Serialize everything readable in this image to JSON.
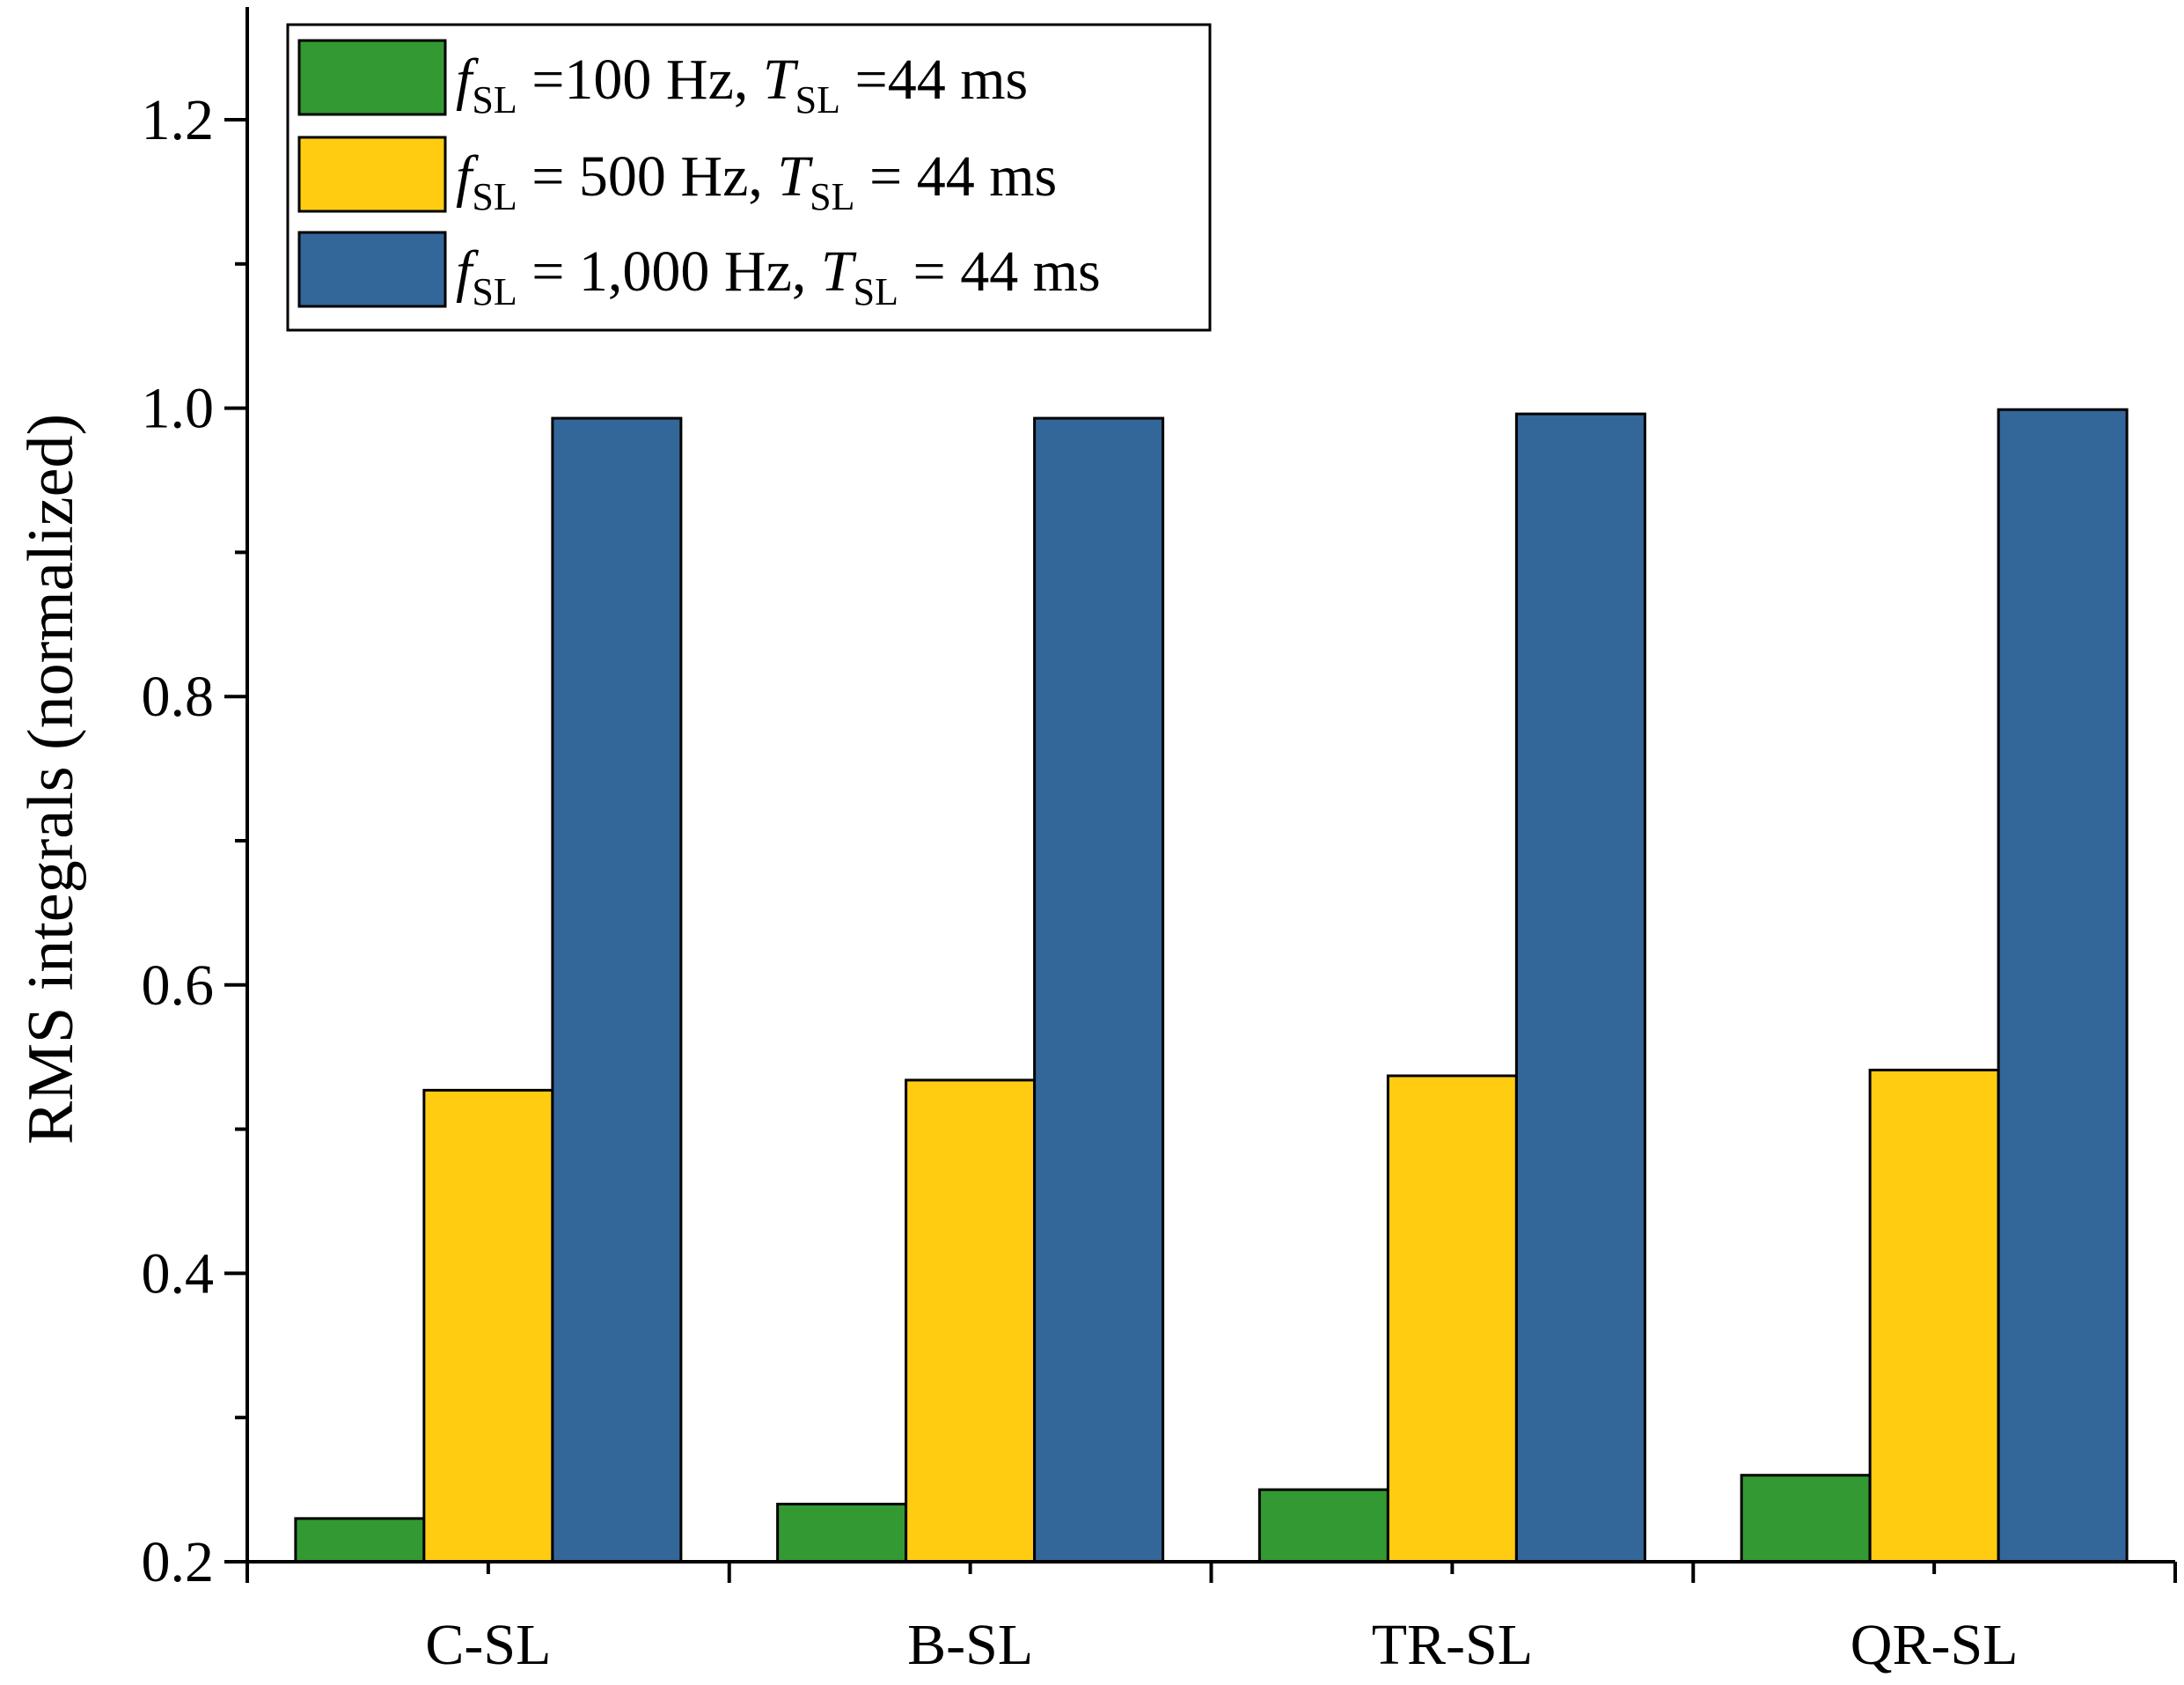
{
  "chart_data": {
    "type": "bar",
    "title": "",
    "xlabel": "",
    "ylabel": "RMS integrals (normalized)",
    "ylim": [
      0.2,
      1.28
    ],
    "yticks": [
      0.2,
      0.4,
      0.6,
      0.8,
      1.0,
      1.2
    ],
    "ytick_labels": [
      "0.2",
      "0.4",
      "0.6",
      "0.8",
      "1.0",
      "1.2"
    ],
    "categories": [
      "C-SL",
      "B-SL",
      "TR-SL",
      "QR-SL"
    ],
    "grid": false,
    "legend_position": "top-left",
    "series": [
      {
        "legend": {
          "f_symbol": "f",
          "f_sub": "SL",
          "f_value": " =100 Hz, ",
          "t_symbol": "T",
          "t_sub": "SL",
          "t_value": " =44 ms"
        },
        "color": "#339933",
        "values": [
          0.23,
          0.24,
          0.25,
          0.26
        ]
      },
      {
        "legend": {
          "f_symbol": "f",
          "f_sub": "SL",
          "f_value": " = 500 Hz, ",
          "t_symbol": "T",
          "t_sub": "SL",
          "t_value": " = 44 ms"
        },
        "color": "#FFCC11",
        "values": [
          0.527,
          0.534,
          0.537,
          0.541
        ]
      },
      {
        "legend": {
          "f_symbol": "f",
          "f_sub": "SL",
          "f_value": " = 1,000 Hz, ",
          "t_symbol": "T",
          "t_sub": "SL",
          "t_value": " = 44 ms"
        },
        "color": "#336699",
        "values": [
          0.993,
          0.993,
          0.996,
          0.999
        ]
      }
    ]
  }
}
